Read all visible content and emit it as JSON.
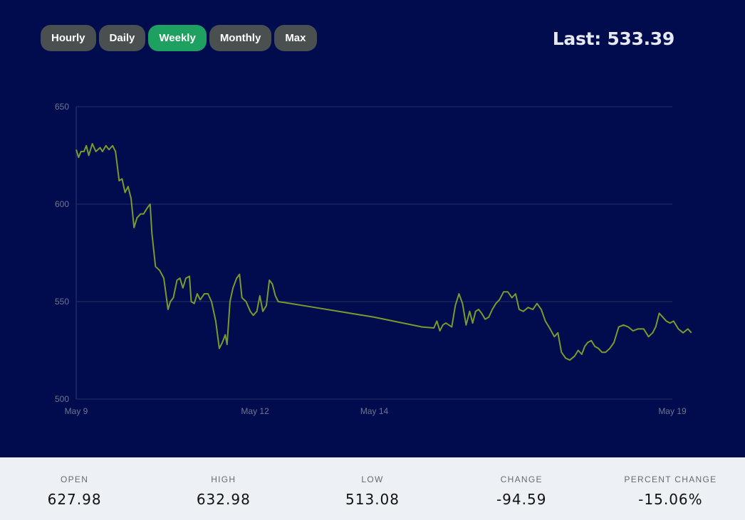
{
  "range_buttons": [
    {
      "label": "Hourly",
      "active": false
    },
    {
      "label": "Daily",
      "active": false
    },
    {
      "label": "Weekly",
      "active": true
    },
    {
      "label": "Monthly",
      "active": false
    },
    {
      "label": "Max",
      "active": false
    }
  ],
  "last_label": "Last: 533.39",
  "colors": {
    "background": "#000c4d",
    "line": "#7a9a2e",
    "active_button": "#1ea160",
    "button": "#4a4f50",
    "stats_bar": "#edf1f5"
  },
  "stats": [
    {
      "label": "OPEN",
      "value": "627.98"
    },
    {
      "label": "HIGH",
      "value": "632.98"
    },
    {
      "label": "LOW",
      "value": "513.08"
    },
    {
      "label": "CHANGE",
      "value": "-94.59"
    },
    {
      "label": "PERCENT CHANGE",
      "value": "-15.06%"
    }
  ],
  "chart_data": {
    "type": "line",
    "title": "",
    "xlabel": "",
    "ylabel": "",
    "ylim": [
      500,
      650
    ],
    "yticks": [
      500,
      550,
      600,
      650
    ],
    "xlim": [
      9,
      19
    ],
    "xticks": [
      {
        "value": 9,
        "label": "May 9"
      },
      {
        "value": 12,
        "label": "May 12"
      },
      {
        "value": 14,
        "label": "May 14"
      },
      {
        "value": 19,
        "label": "May 19"
      }
    ],
    "grid": true,
    "series": [
      {
        "points": [
          [
            9.0,
            628
          ],
          [
            9.04,
            624
          ],
          [
            9.08,
            627
          ],
          [
            9.13,
            627
          ],
          [
            9.17,
            630
          ],
          [
            9.21,
            625
          ],
          [
            9.27,
            631
          ],
          [
            9.33,
            627
          ],
          [
            9.4,
            629
          ],
          [
            9.44,
            627
          ],
          [
            9.5,
            630
          ],
          [
            9.55,
            628
          ],
          [
            9.61,
            630
          ],
          [
            9.66,
            627
          ],
          [
            9.72,
            612
          ],
          [
            9.77,
            613
          ],
          [
            9.82,
            606
          ],
          [
            9.87,
            609
          ],
          [
            9.92,
            603
          ],
          [
            9.97,
            588
          ],
          [
            10.02,
            593
          ],
          [
            10.08,
            595
          ],
          [
            10.13,
            595
          ],
          [
            10.19,
            598
          ],
          [
            10.24,
            600
          ],
          [
            10.27,
            585
          ],
          [
            10.33,
            568
          ],
          [
            10.4,
            566
          ],
          [
            10.47,
            562
          ],
          [
            10.54,
            546
          ],
          [
            10.58,
            550
          ],
          [
            10.63,
            552
          ],
          [
            10.69,
            561
          ],
          [
            10.74,
            562
          ],
          [
            10.79,
            557
          ],
          [
            10.84,
            562
          ],
          [
            10.9,
            563
          ],
          [
            10.93,
            550
          ],
          [
            10.98,
            549
          ],
          [
            11.03,
            554
          ],
          [
            11.08,
            551
          ],
          [
            11.15,
            554
          ],
          [
            11.21,
            554
          ],
          [
            11.27,
            550
          ],
          [
            11.34,
            540
          ],
          [
            11.4,
            526
          ],
          [
            11.45,
            529
          ],
          [
            11.5,
            533
          ],
          [
            11.53,
            528
          ],
          [
            11.58,
            550
          ],
          [
            11.63,
            557
          ],
          [
            11.69,
            562
          ],
          [
            11.74,
            564
          ],
          [
            11.78,
            552
          ],
          [
            11.85,
            550
          ],
          [
            11.92,
            545
          ],
          [
            11.97,
            543
          ],
          [
            12.03,
            545
          ],
          [
            12.08,
            553
          ],
          [
            12.13,
            545
          ],
          [
            12.19,
            548
          ],
          [
            12.24,
            561
          ],
          [
            12.29,
            559
          ],
          [
            12.34,
            553
          ],
          [
            12.39,
            550
          ],
          [
            12.5,
            549.5
          ],
          [
            13.0,
            547
          ],
          [
            14.0,
            542
          ],
          [
            14.8,
            537
          ],
          [
            15.0,
            536.5
          ],
          [
            15.05,
            540
          ],
          [
            15.1,
            535
          ],
          [
            15.15,
            538
          ],
          [
            15.2,
            539
          ],
          [
            15.3,
            537
          ],
          [
            15.36,
            548
          ],
          [
            15.42,
            554
          ],
          [
            15.48,
            549
          ],
          [
            15.54,
            538
          ],
          [
            15.6,
            545
          ],
          [
            15.65,
            539
          ],
          [
            15.7,
            545
          ],
          [
            15.75,
            546
          ],
          [
            15.8,
            544
          ],
          [
            15.86,
            541
          ],
          [
            15.92,
            542
          ],
          [
            15.98,
            546
          ],
          [
            16.04,
            549
          ],
          [
            16.1,
            551
          ],
          [
            16.17,
            555
          ],
          [
            16.24,
            555
          ],
          [
            16.31,
            552
          ],
          [
            16.37,
            554
          ],
          [
            16.43,
            546
          ],
          [
            16.5,
            545
          ],
          [
            16.58,
            547
          ],
          [
            16.66,
            546
          ],
          [
            16.73,
            549
          ],
          [
            16.8,
            546
          ],
          [
            16.87,
            540
          ],
          [
            16.95,
            536
          ],
          [
            17.02,
            532
          ],
          [
            17.08,
            534
          ],
          [
            17.14,
            524
          ],
          [
            17.21,
            521
          ],
          [
            17.28,
            520
          ],
          [
            17.36,
            522
          ],
          [
            17.42,
            525
          ],
          [
            17.48,
            523
          ],
          [
            17.53,
            527
          ],
          [
            17.58,
            529
          ],
          [
            17.64,
            530
          ],
          [
            17.7,
            527
          ],
          [
            17.76,
            526
          ],
          [
            17.82,
            524
          ],
          [
            17.88,
            524
          ],
          [
            17.95,
            526
          ],
          [
            18.02,
            529
          ],
          [
            18.1,
            537
          ],
          [
            18.18,
            538
          ],
          [
            18.26,
            537
          ],
          [
            18.34,
            535
          ],
          [
            18.42,
            536
          ],
          [
            18.52,
            536
          ],
          [
            18.6,
            532
          ],
          [
            18.67,
            534
          ],
          [
            18.72,
            537
          ],
          [
            18.78,
            544
          ],
          [
            18.84,
            542
          ],
          [
            18.9,
            540
          ],
          [
            18.96,
            539
          ],
          [
            19.02,
            540
          ],
          [
            19.1,
            536
          ],
          [
            19.18,
            534
          ],
          [
            19.26,
            536
          ],
          [
            19.32,
            534
          ]
        ]
      }
    ]
  }
}
